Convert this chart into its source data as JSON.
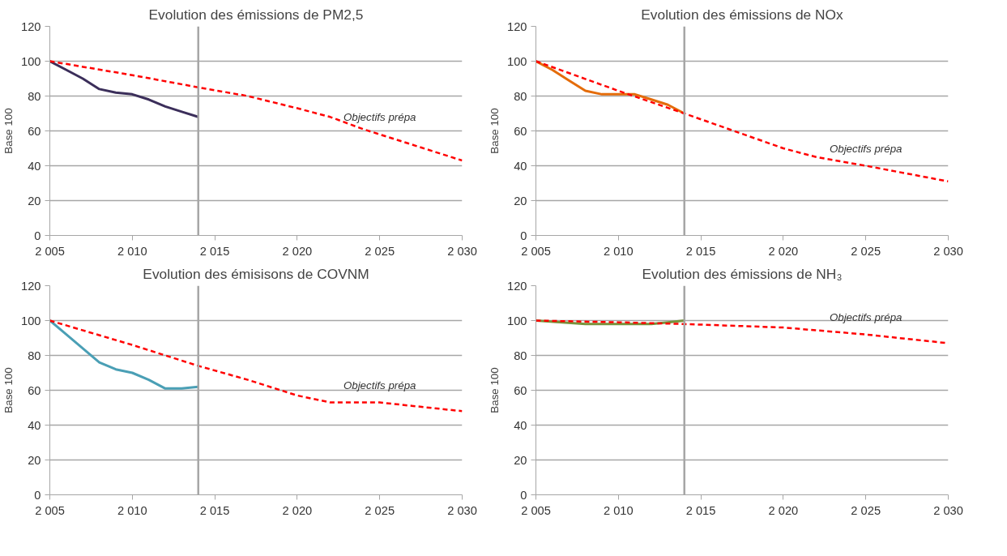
{
  "chart_data": [
    {
      "type": "line",
      "title": "Evolution des émissions de PM2,5",
      "ylabel": "Base 100",
      "xlim": [
        2005,
        2030
      ],
      "ylim": [
        0,
        120
      ],
      "xticks": [
        {
          "value": 2005,
          "label": "2 005"
        },
        {
          "value": 2010,
          "label": "2 010"
        },
        {
          "value": 2015,
          "label": "2 015"
        },
        {
          "value": 2020,
          "label": "2 020"
        },
        {
          "value": 2025,
          "label": "2 025"
        },
        {
          "value": 2030,
          "label": "2 030"
        }
      ],
      "yticks": [
        0,
        20,
        40,
        60,
        80,
        100,
        120
      ],
      "grid": "y",
      "ref_lines": [
        {
          "axis": "x",
          "value": 2014,
          "color": "#a6a6a6"
        }
      ],
      "series": [
        {
          "color": "#3b2e5a",
          "x": [
            2005,
            2006,
            2007,
            2008,
            2009,
            2010,
            2011,
            2012,
            2013,
            2014
          ],
          "values": [
            100,
            95,
            90,
            84,
            82,
            81,
            78,
            74,
            71,
            68
          ]
        },
        {
          "name": "Objectifs prépa",
          "color": "#ff0000",
          "line_style": "dashed",
          "x": [
            2005,
            2010,
            2014,
            2017,
            2020,
            2022,
            2024,
            2025,
            2030
          ],
          "values": [
            100,
            92,
            85,
            80,
            73,
            68,
            61,
            58,
            43
          ]
        }
      ]
    },
    {
      "type": "line",
      "title": "Evolution des émissions de NOx",
      "ylabel": "Base 100",
      "xlim": [
        2005,
        2030
      ],
      "ylim": [
        0,
        120
      ],
      "xticks": [
        {
          "value": 2005,
          "label": "2 005"
        },
        {
          "value": 2010,
          "label": "2 010"
        },
        {
          "value": 2015,
          "label": "2 015"
        },
        {
          "value": 2020,
          "label": "2 020"
        },
        {
          "value": 2025,
          "label": "2 025"
        },
        {
          "value": 2030,
          "label": "2 030"
        }
      ],
      "yticks": [
        0,
        20,
        40,
        60,
        80,
        100,
        120
      ],
      "grid": "y",
      "ref_lines": [
        {
          "axis": "x",
          "value": 2014,
          "color": "#a6a6a6"
        }
      ],
      "series": [
        {
          "color": "#e46c0a",
          "x": [
            2005,
            2006,
            2007,
            2008,
            2009,
            2010,
            2011,
            2012,
            2013,
            2014
          ],
          "values": [
            100,
            95,
            89,
            83,
            81,
            81,
            81,
            78,
            75,
            70
          ]
        },
        {
          "name": "Objectifs prépa",
          "color": "#ff0000",
          "line_style": "dashed",
          "x": [
            2005,
            2010,
            2014,
            2017,
            2020,
            2022,
            2025,
            2030
          ],
          "values": [
            100,
            83,
            70,
            60,
            50,
            45,
            40,
            31
          ]
        }
      ]
    },
    {
      "type": "line",
      "title": "Evolution des émisisons de COVNM",
      "ylabel": "Base 100",
      "xlim": [
        2005,
        2030
      ],
      "ylim": [
        0,
        120
      ],
      "xticks": [
        {
          "value": 2005,
          "label": "2 005"
        },
        {
          "value": 2010,
          "label": "2 010"
        },
        {
          "value": 2015,
          "label": "2 015"
        },
        {
          "value": 2020,
          "label": "2 020"
        },
        {
          "value": 2025,
          "label": "2 025"
        },
        {
          "value": 2030,
          "label": "2 030"
        }
      ],
      "yticks": [
        0,
        20,
        40,
        60,
        80,
        100,
        120
      ],
      "grid": "y",
      "ref_lines": [
        {
          "axis": "x",
          "value": 2014,
          "color": "#a6a6a6"
        }
      ],
      "series": [
        {
          "color": "#4a9fb5",
          "x": [
            2005,
            2006,
            2007,
            2008,
            2009,
            2010,
            2011,
            2012,
            2013,
            2014
          ],
          "values": [
            100,
            92,
            84,
            76,
            72,
            70,
            66,
            61,
            61,
            62
          ]
        },
        {
          "name": "Objectifs prépa",
          "color": "#ff0000",
          "line_style": "dashed",
          "x": [
            2005,
            2010,
            2014,
            2017,
            2019,
            2020,
            2022,
            2025,
            2030
          ],
          "values": [
            100,
            86,
            74,
            66,
            60,
            57,
            53,
            53,
            48
          ]
        }
      ]
    },
    {
      "type": "line",
      "title": "Evolution des émissions de NH₃",
      "ylabel": "Base 100",
      "xlim": [
        2005,
        2030
      ],
      "ylim": [
        0,
        120
      ],
      "xticks": [
        {
          "value": 2005,
          "label": "2 005"
        },
        {
          "value": 2010,
          "label": "2 010"
        },
        {
          "value": 2015,
          "label": "2 015"
        },
        {
          "value": 2020,
          "label": "2 020"
        },
        {
          "value": 2025,
          "label": "2 025"
        },
        {
          "value": 2030,
          "label": "2 030"
        }
      ],
      "yticks": [
        0,
        20,
        40,
        60,
        80,
        100,
        120
      ],
      "grid": "y",
      "ref_lines": [
        {
          "axis": "x",
          "value": 2014,
          "color": "#a6a6a6"
        }
      ],
      "series": [
        {
          "color": "#77933c",
          "x": [
            2005,
            2008,
            2010,
            2012,
            2013,
            2014
          ],
          "values": [
            100,
            98,
            98,
            98,
            99,
            100
          ]
        },
        {
          "name": "Objectifs prépa",
          "color": "#ff0000",
          "line_style": "dashed",
          "x": [
            2005,
            2010,
            2014,
            2020,
            2025,
            2030
          ],
          "values": [
            100,
            99,
            98,
            96,
            92,
            87
          ]
        }
      ]
    }
  ]
}
